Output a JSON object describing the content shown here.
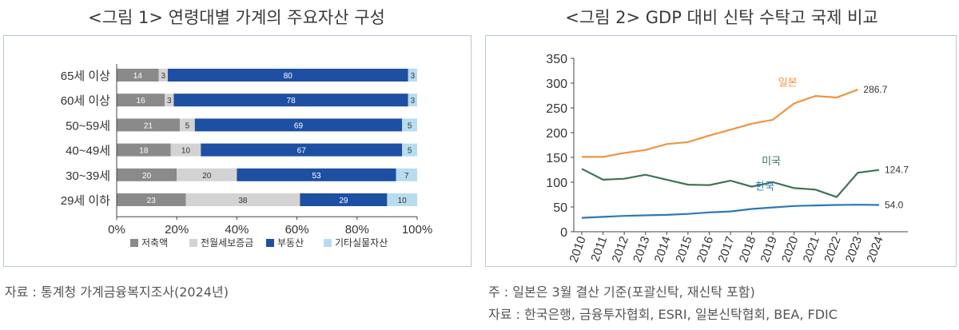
{
  "figures": {
    "left_title": "<그림 1> 연령대별 가계의 주요자산 구성",
    "right_title": "<그림 2> GDP 대비 신탁 수탁고 국제 비교",
    "left_source": "자료 : 통계청 가계금융복지조사(2024년)",
    "right_note": "주 : 일본은 3월 결산 기준(포괄신탁, 재신탁 포함)",
    "right_source": "자료 : 한국은행, 금융투자협회, ESRI, 일본신탁협회, BEA, FDIC"
  },
  "chart_data": [
    {
      "type": "bar",
      "orientation": "horizontal",
      "stacked": true,
      "categories": [
        "65세 이상",
        "60세 이상",
        "50~59세",
        "40~49세",
        "30~39세",
        "29세 이하"
      ],
      "series": [
        {
          "name": "저축액",
          "color": "#8a8a8a",
          "values": [
            14,
            16,
            21,
            18,
            20,
            23
          ]
        },
        {
          "name": "전월세보증금",
          "color": "#d3d3d3",
          "values": [
            3,
            3,
            5,
            10,
            20,
            38
          ]
        },
        {
          "name": "부동산",
          "color": "#1d4fa3",
          "values": [
            80,
            78,
            69,
            67,
            53,
            29
          ]
        },
        {
          "name": "기타실물자산",
          "color": "#b7dcee",
          "values": [
            3,
            3,
            5,
            5,
            7,
            10
          ]
        }
      ],
      "xlim": [
        0,
        100
      ],
      "xticks": [
        "0%",
        "20%",
        "40%",
        "60%",
        "80%",
        "100%"
      ],
      "legend_position": "bottom",
      "grid": false
    },
    {
      "type": "line",
      "x": [
        "2010",
        "2011",
        "2012",
        "2013",
        "2014",
        "2015",
        "2016",
        "2017",
        "2018",
        "2019",
        "2020",
        "2021",
        "2022",
        "2023",
        "2024"
      ],
      "series": [
        {
          "name": "일본",
          "color": "#f0943c",
          "values": [
            151,
            151,
            159,
            165,
            177,
            181,
            194,
            206,
            218,
            226,
            259,
            274,
            271,
            286.7,
            null
          ],
          "end_label": "286.7"
        },
        {
          "name": "미국",
          "color": "#3e7252",
          "values": [
            127,
            105,
            107,
            115,
            105,
            95,
            94,
            103,
            91,
            100,
            88,
            85,
            70,
            119,
            124.7
          ],
          "end_label": "124.7"
        },
        {
          "name": "한국",
          "color": "#2f77b6",
          "values": [
            28,
            30,
            32,
            33,
            34,
            36,
            39,
            41,
            46,
            49,
            52,
            53,
            54,
            54.5,
            54.0
          ],
          "end_label": "54.0"
        }
      ],
      "ylim": [
        0,
        350
      ],
      "yticks": [
        "0",
        "50",
        "100",
        "150",
        "200",
        "250",
        "300",
        "350"
      ],
      "grid": false
    }
  ]
}
